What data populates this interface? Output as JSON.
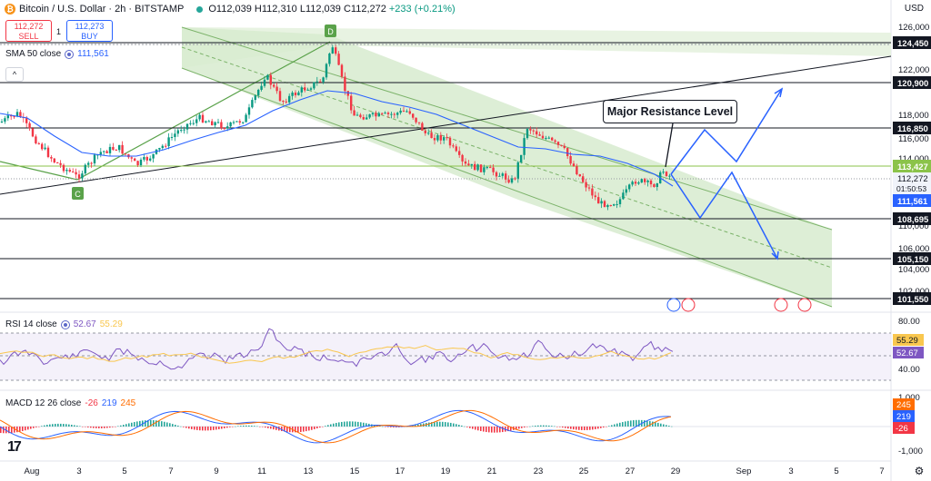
{
  "header": {
    "symbol_title": "Bitcoin / U.S. Dollar · 2h · BITSTAMP",
    "ohlc": "O112,039 H112,310 L112,039 C112,272",
    "change": "+233 (+0.21%)",
    "logo_glyph": "₿"
  },
  "trade": {
    "sell_price": "112,272",
    "sell_label": "SELL",
    "spread": "1",
    "buy_price": "112,273",
    "buy_label": "BUY"
  },
  "indicators": {
    "sma": {
      "label": "SMA 50 close",
      "value": "111,561"
    },
    "rsi": {
      "label": "RSI 14 close",
      "value1": "52.67",
      "value2": "55.29"
    },
    "macd": {
      "label": "MACD 12 26 close",
      "v1": "-26",
      "v2": "219",
      "v3": "245"
    }
  },
  "annotations": {
    "callout": "Major Resistance Level",
    "point_c": "C",
    "point_d": "D"
  },
  "axis": {
    "currency": "USD",
    "price_ticks": [
      "126,000",
      "122,000",
      "118,000",
      "116,000",
      "114,000",
      "110,000",
      "106,000",
      "104,000",
      "102,000"
    ],
    "time_ticks": [
      "Aug",
      "3",
      "5",
      "7",
      "9",
      "11",
      "13",
      "15",
      "17",
      "19",
      "21",
      "23",
      "25",
      "27",
      "29",
      "Sep",
      "3",
      "5",
      "7"
    ],
    "rsi_ticks": [
      "80.00",
      "40.00"
    ],
    "macd_ticks": [
      "1,000",
      "-1,000"
    ]
  },
  "levels": {
    "l124450": "124,450",
    "l120900": "120,900",
    "l116850": "116,850",
    "l113427": "113,427",
    "l112272": "112,272",
    "countdown": "01:50:53",
    "l111561": "111,561",
    "l108695": "108,695",
    "l105150": "105,150",
    "l101550": "101,550"
  },
  "pane_labels": {
    "rsi_a": "55.29",
    "rsi_b": "52.67",
    "macd_a": "245",
    "macd_b": "219",
    "macd_c": "-26"
  },
  "colors": {
    "bull": "#089981",
    "bear": "#f23645",
    "sma": "#2962ff",
    "channel": "#dcedd5",
    "rsi": "#7e57c2"
  }
}
